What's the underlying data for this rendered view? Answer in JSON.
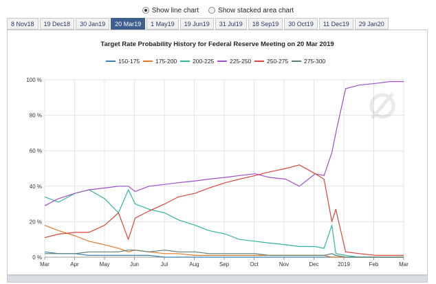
{
  "options": {
    "line_label": "Show line chart",
    "stacked_label": "Show stacked area chart",
    "selected": "line"
  },
  "tabs": [
    {
      "label": "8 Nov18",
      "active": false
    },
    {
      "label": "19 Dec18",
      "active": false
    },
    {
      "label": "30 Jan19",
      "active": false
    },
    {
      "label": "20 Mar19",
      "active": true
    },
    {
      "label": "1 May19",
      "active": false
    },
    {
      "label": "19 Jun19",
      "active": false
    },
    {
      "label": "31 Jul19",
      "active": false
    },
    {
      "label": "18 Sep19",
      "active": false
    },
    {
      "label": "30 Oct19",
      "active": false
    },
    {
      "label": "11 Dec19",
      "active": false
    },
    {
      "label": "29 Jan20",
      "active": false
    }
  ],
  "chart_data": {
    "type": "line",
    "title": "Target Rate Probability History for Federal Reserve Meeting on 20 Mar 2019",
    "xlabel": "",
    "ylabel": "",
    "x_ticks": [
      "Mar",
      "Apr",
      "May",
      "Jun",
      "Jul",
      "Aug",
      "Sep",
      "Oct",
      "Nov",
      "Dec",
      "2019",
      "Feb",
      "Mar"
    ],
    "x_range": [
      "2018-03-01",
      "2019-03-01"
    ],
    "y_ticks": [
      "0 %",
      "20 %",
      "40 %",
      "60 %",
      "80 %",
      "100 %"
    ],
    "ylim": [
      0,
      100
    ],
    "grid": true,
    "legend_position": "top",
    "x": [
      "2018-03-01",
      "2018-03-15",
      "2018-04-01",
      "2018-04-15",
      "2018-05-01",
      "2018-05-15",
      "2018-05-25",
      "2018-06-01",
      "2018-06-15",
      "2018-07-01",
      "2018-07-15",
      "2018-08-01",
      "2018-08-15",
      "2018-09-01",
      "2018-09-15",
      "2018-10-01",
      "2018-10-15",
      "2018-11-01",
      "2018-11-15",
      "2018-12-01",
      "2018-12-10",
      "2018-12-18",
      "2018-12-22",
      "2019-01-01",
      "2019-01-15",
      "2019-02-01",
      "2019-02-15",
      "2019-03-01"
    ],
    "series": [
      {
        "name": "150-175",
        "color": "#3b7fb6",
        "values": [
          3,
          2,
          2,
          1,
          1,
          1,
          1,
          1,
          1,
          0,
          0,
          0,
          0,
          0,
          0,
          0,
          0,
          0,
          0,
          0,
          0,
          0,
          0,
          0,
          0,
          0,
          0,
          0
        ]
      },
      {
        "name": "175-200",
        "color": "#e0772c",
        "values": [
          18,
          15,
          12,
          9,
          7,
          5,
          3,
          4,
          3,
          2,
          2,
          1,
          1,
          1,
          1,
          1,
          1,
          1,
          1,
          1,
          1,
          0,
          0,
          0,
          0,
          0,
          0,
          0
        ]
      },
      {
        "name": "200-225",
        "color": "#2fb59a",
        "values": [
          34,
          31,
          36,
          38,
          33,
          25,
          38,
          30,
          27,
          25,
          21,
          18,
          15,
          13,
          10,
          9,
          8,
          7,
          6,
          6,
          5,
          18,
          2,
          1,
          0,
          0,
          0,
          0
        ]
      },
      {
        "name": "225-250",
        "color": "#9b4fc9",
        "values": [
          29,
          33,
          36,
          38,
          39,
          40,
          40,
          37,
          40,
          41,
          42,
          43,
          44,
          45,
          46,
          47,
          45,
          44,
          40,
          47,
          46,
          59,
          70,
          95,
          97,
          98,
          99,
          99
        ]
      },
      {
        "name": "250-275",
        "color": "#d9453a",
        "values": [
          11,
          13,
          14,
          14,
          18,
          25,
          10,
          22,
          26,
          30,
          34,
          36,
          39,
          42,
          44,
          46,
          48,
          50,
          52,
          47,
          44,
          20,
          27,
          3,
          2,
          1,
          1,
          1
        ]
      },
      {
        "name": "275-300",
        "color": "#5b7d74",
        "values": [
          2,
          2,
          2,
          3,
          3,
          3,
          4,
          4,
          3,
          4,
          3,
          3,
          2,
          2,
          2,
          2,
          1,
          1,
          1,
          1,
          1,
          2,
          1,
          0,
          0,
          0,
          0,
          0
        ]
      }
    ]
  }
}
